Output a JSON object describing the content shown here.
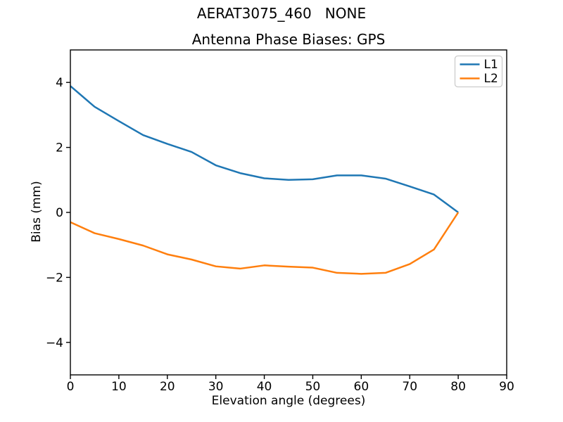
{
  "figure": {
    "background": "#ffffff"
  },
  "chart_data": {
    "type": "line",
    "suptitle": "AERAT3075_460   NONE",
    "title": "Antenna Phase Biases: GPS",
    "xlabel": "Elevation angle (degrees)",
    "ylabel": "Bias (mm)",
    "xlim": [
      0,
      90
    ],
    "ylim": [
      -5,
      5
    ],
    "xticks": [
      0,
      10,
      20,
      30,
      40,
      50,
      60,
      70,
      80,
      90
    ],
    "yticks": [
      -4,
      -2,
      0,
      2,
      4
    ],
    "ytick_labels": [
      "−4",
      "−2",
      "0",
      "2",
      "4"
    ],
    "grid": false,
    "legend": {
      "position": "upper right"
    },
    "axis_color": "#000000",
    "legend_border_color": "#cccccc",
    "x": [
      0,
      5,
      10,
      15,
      20,
      25,
      30,
      35,
      40,
      45,
      50,
      55,
      60,
      65,
      70,
      75,
      80
    ],
    "series": [
      {
        "name": "L1",
        "color": "#1f77b4",
        "values": [
          3.89,
          3.25,
          2.81,
          2.38,
          2.11,
          1.86,
          1.45,
          1.21,
          1.05,
          1.0,
          1.02,
          1.14,
          1.14,
          1.04,
          0.8,
          0.55,
          0.0
        ]
      },
      {
        "name": "L2",
        "color": "#ff7f0e",
        "values": [
          -0.3,
          -0.64,
          -0.82,
          -1.02,
          -1.29,
          -1.45,
          -1.66,
          -1.73,
          -1.63,
          -1.67,
          -1.7,
          -1.86,
          -1.89,
          -1.86,
          -1.59,
          -1.14,
          0.0
        ]
      }
    ]
  }
}
